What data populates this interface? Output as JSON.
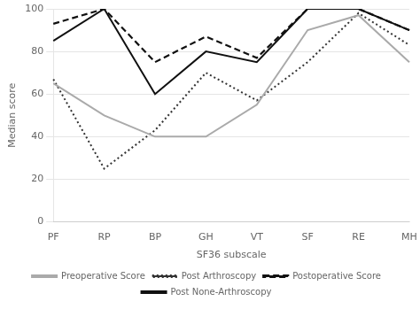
{
  "chart_data": {
    "type": "line",
    "xlabel": "SF36 subscale",
    "ylabel": "Median score",
    "categories": [
      "PF",
      "RP",
      "BP",
      "GH",
      "VT",
      "SF",
      "RE",
      "MH"
    ],
    "series": [
      {
        "name": "Preoperative Score",
        "color": "#aaaaaa",
        "line_style": "solid",
        "values": [
          65,
          50,
          40,
          40,
          55,
          90,
          97,
          75
        ]
      },
      {
        "name": "Post Arthroscopy",
        "color": "#333333",
        "line_style": "dotted",
        "values": [
          67,
          25,
          43,
          70,
          57,
          75,
          98,
          83
        ]
      },
      {
        "name": "Postoperative Score",
        "color": "#111111",
        "line_style": "dashed",
        "values": [
          93,
          100,
          75,
          87,
          77,
          100,
          100,
          90
        ]
      },
      {
        "name": "Post None-Arthroscopy",
        "color": "#111111",
        "line_style": "solid",
        "values": [
          85,
          100,
          60,
          80,
          75,
          100,
          100,
          90
        ]
      }
    ],
    "ylim": [
      0,
      100
    ],
    "yticks": [
      0,
      20,
      40,
      60,
      80,
      100
    ],
    "grid": "y",
    "legend": "bottom"
  }
}
